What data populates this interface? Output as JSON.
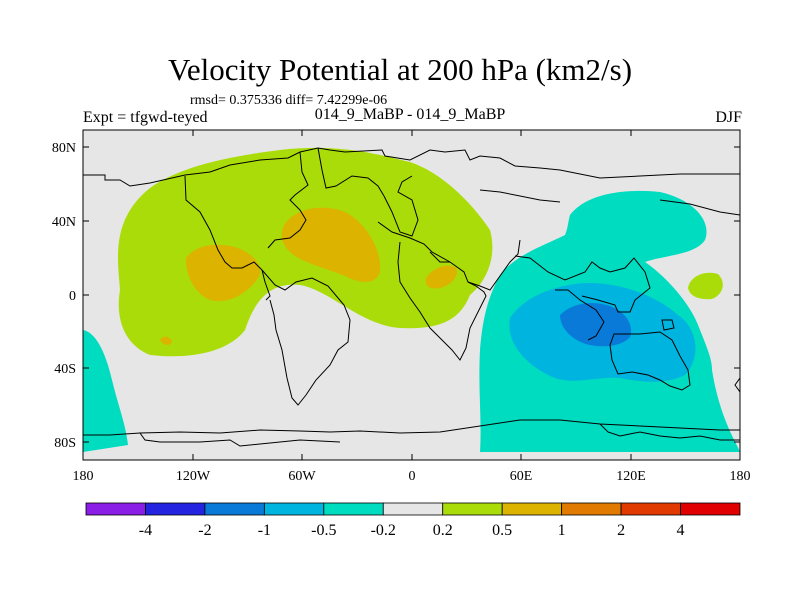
{
  "title": "Velocity Potential at 200 hPa (km2/s)",
  "stats_text": "rmsd= 0.375336 diff= 7.42299e-06",
  "experiment": "Expt = tfgwd-teyed",
  "case_label": "014_9_MaBP - 014_9_MaBP",
  "season": "DJF",
  "lon_ticks": [
    "180",
    "120W",
    "60W",
    "0",
    "60E",
    "120E",
    "180"
  ],
  "lat_ticks": [
    "80N",
    "40N",
    "0",
    "40S",
    "80S"
  ],
  "colorbar": {
    "levels": [
      "-4",
      "-2",
      "-1",
      "-0.5",
      "-0.2",
      "0.2",
      "0.5",
      "1",
      "2",
      "4"
    ],
    "colors": [
      "#8a1ee6",
      "#2424e0",
      "#0a7ad8",
      "#00b4e0",
      "#00dcc0",
      "#e6e6e6",
      "#aadc0a",
      "#dcb400",
      "#e07a00",
      "#e03a00",
      "#e00000"
    ]
  }
}
